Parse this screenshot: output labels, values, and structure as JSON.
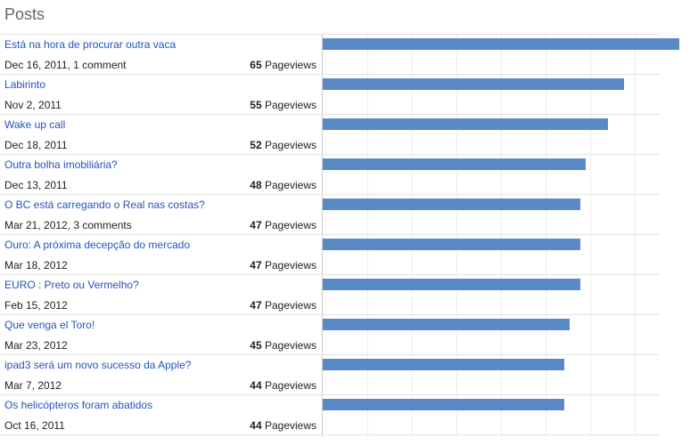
{
  "page": {
    "title": "Posts",
    "pageviews_label": "Pageviews"
  },
  "chart_data": {
    "type": "bar",
    "xlim": [
      0,
      65
    ],
    "posts": [
      {
        "title": "Está na hora de procurar outra vaca",
        "meta": "Dec 16, 2011, 1 comment",
        "pageviews": 65
      },
      {
        "title": "Labirinto",
        "meta": "Nov 2, 2011",
        "pageviews": 55
      },
      {
        "title": "Wake up call",
        "meta": "Dec 18, 2011",
        "pageviews": 52
      },
      {
        "title": "Outra bolha imobiliária?",
        "meta": "Dec 13, 2011",
        "pageviews": 48
      },
      {
        "title": "O BC está carregando o Real nas costas?",
        "meta": "Mar 21, 2012, 3 comments",
        "pageviews": 47
      },
      {
        "title": "Ouro: A próxima decepção do mercado",
        "meta": "Mar 18, 2012",
        "pageviews": 47
      },
      {
        "title": "EURO : Preto ou Vermelho?",
        "meta": "Feb 15, 2012",
        "pageviews": 47
      },
      {
        "title": "Que venga el Toro!",
        "meta": "Mar 23, 2012",
        "pageviews": 45
      },
      {
        "title": "ipad3 será um novo sucesso da Apple?",
        "meta": "Mar 7, 2012",
        "pageviews": 44
      },
      {
        "title": "Os helicópteros foram abatidos",
        "meta": "Oct 16, 2011",
        "pageviews": 44
      }
    ],
    "grid": true,
    "bar_color": "#5a8ac6",
    "link_color": "#2255bb"
  }
}
